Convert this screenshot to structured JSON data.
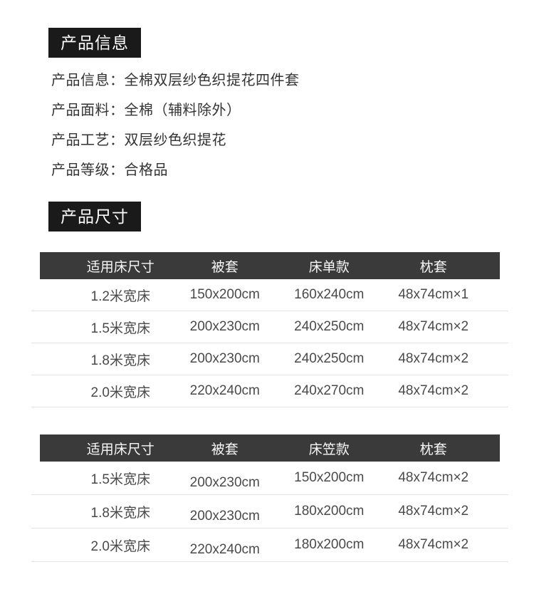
{
  "colors": {
    "badge_bg": "#1a1a1a",
    "badge_text": "#ffffff",
    "table_header_bg": "#3a3a3a",
    "table_header_text": "#f7f7f7",
    "body_text": "#4a4a4a",
    "info_text": "#333333",
    "divider": "#e3e3e3",
    "page_bg": "#ffffff"
  },
  "product_info": {
    "badge": "产品信息",
    "fields": [
      {
        "label": "产品信息：",
        "value": "全棉双层纱色织提花四件套"
      },
      {
        "label": "产品面料：",
        "value": "全棉（辅料除外）"
      },
      {
        "label": "产品工艺：",
        "value": "双层纱色织提花"
      },
      {
        "label": "产品等级：",
        "value": "合格品"
      }
    ]
  },
  "product_size": {
    "badge": "产品尺寸",
    "tables": [
      {
        "headers": [
          "适用床尺寸",
          "被套",
          "床单款",
          "枕套"
        ],
        "rows": [
          [
            "1.2米宽床",
            "150x200cm",
            "160x240cm",
            "48x74cm×1"
          ],
          [
            "1.5米宽床",
            "200x230cm",
            "240x250cm",
            "48x74cm×2"
          ],
          [
            "1.8米宽床",
            "200x230cm",
            "240x250cm",
            "48x74cm×2"
          ],
          [
            "2.0米宽床",
            "220x240cm",
            "240x270cm",
            "48x74cm×2"
          ]
        ]
      },
      {
        "headers": [
          "适用床尺寸",
          "被套",
          "床笠款",
          "枕套"
        ],
        "rows": [
          [
            "1.5米宽床",
            "200x230cm",
            "150x200cm",
            "48x74cm×2"
          ],
          [
            "1.8米宽床",
            "200x230cm",
            "180x200cm",
            "48x74cm×2"
          ],
          [
            "2.0米宽床",
            "220x240cm",
            "180x200cm",
            "48x74cm×2"
          ]
        ]
      }
    ]
  }
}
